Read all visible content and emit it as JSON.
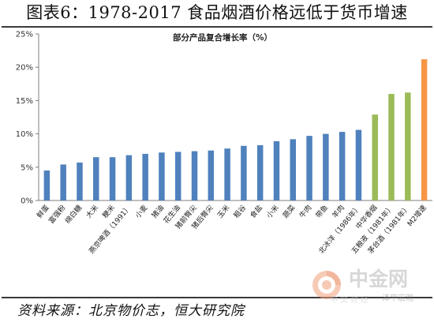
{
  "header": {
    "title": "图表6：1978-2017 食品烟酒价格远低于货币增速"
  },
  "footer": {
    "source": "资料来源：北京物价志，恒大研究院"
  },
  "watermark": {
    "name": "中金网",
    "sub": "中文财经",
    "handle": "泽平宏观",
    "icon": "cngold-logo-icon"
  },
  "colors": {
    "food": "#4F81BD",
    "liquor": "#9BBB59",
    "m2": "#F79646",
    "axis": "#7f7f7f",
    "grid": "#d9d9d9"
  },
  "chart_data": {
    "type": "bar",
    "title": "部分产品复合增长率（%）",
    "xlabel": "",
    "ylabel": "",
    "ylim": [
      0,
      25
    ],
    "yticks": [
      0,
      5,
      10,
      15,
      20,
      25
    ],
    "ytick_labels": [
      "0%",
      "5%",
      "10%",
      "15%",
      "20%",
      "25%"
    ],
    "grid": false,
    "legend": "none",
    "categories": [
      "鲜蛋",
      "富强粉",
      "绵白糖",
      "大米",
      "粳米",
      "燕京啤酒（1991）",
      "小麦",
      "猪油",
      "花生油",
      "猪前臀尖",
      "猪后臀尖",
      "玉米",
      "粗谷",
      "食盐",
      "小米",
      "蔬菜",
      "牛肉",
      "带鱼",
      "羊肉",
      "北冰洋（1986年）",
      "中华香烟",
      "五粮液（1981年）",
      "茅台酒（1981年）",
      "M2增速"
    ],
    "values": [
      4.5,
      5.4,
      5.7,
      6.5,
      6.5,
      6.8,
      7.0,
      7.2,
      7.3,
      7.4,
      7.5,
      7.8,
      8.2,
      8.3,
      8.9,
      9.2,
      9.7,
      10.0,
      10.3,
      10.6,
      12.9,
      16.0,
      16.2,
      21.2
    ],
    "bar_groups": [
      "food",
      "food",
      "food",
      "food",
      "food",
      "food",
      "food",
      "food",
      "food",
      "food",
      "food",
      "food",
      "food",
      "food",
      "food",
      "food",
      "food",
      "food",
      "food",
      "food",
      "liquor",
      "liquor",
      "liquor",
      "m2"
    ]
  }
}
